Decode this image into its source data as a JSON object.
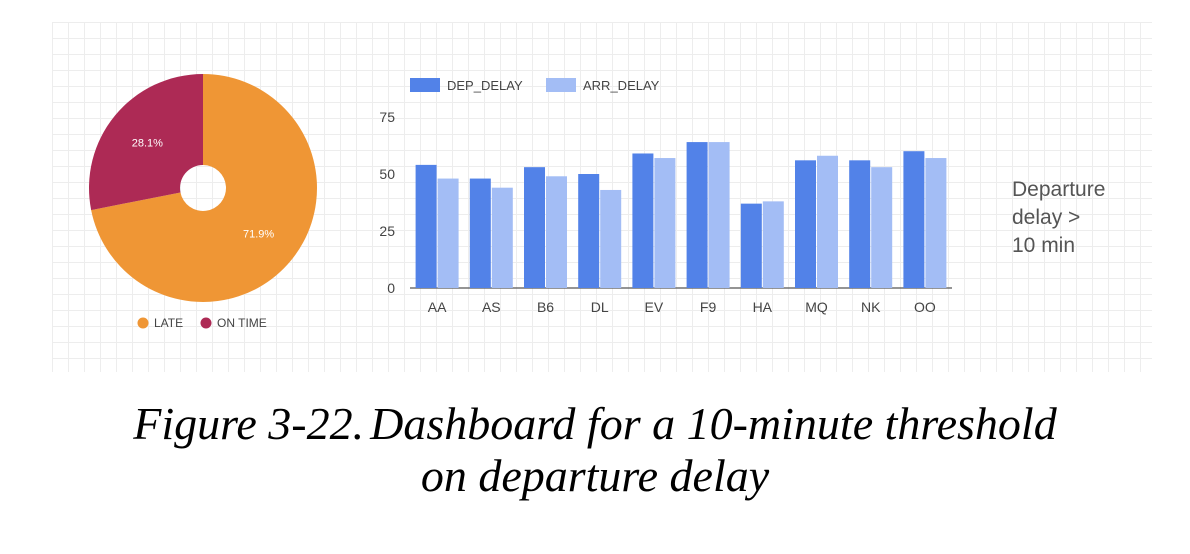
{
  "chart_data": [
    {
      "type": "pie",
      "slices": [
        {
          "name": "LATE",
          "value": 71.9,
          "label": "71.9%",
          "color": "#ef9635"
        },
        {
          "name": "ON TIME",
          "value": 28.1,
          "label": "28.1%",
          "color": "#ad2a55"
        }
      ],
      "legend": [
        "LATE",
        "ON TIME"
      ],
      "legend_position": "bottom",
      "donut": true
    },
    {
      "type": "bar",
      "categories": [
        "AA",
        "AS",
        "B6",
        "DL",
        "EV",
        "F9",
        "HA",
        "MQ",
        "NK",
        "OO"
      ],
      "series": [
        {
          "name": "DEP_DELAY",
          "color": "#5282e8",
          "values": [
            54,
            48,
            53,
            50,
            59,
            64,
            37,
            56,
            56,
            60
          ]
        },
        {
          "name": "ARR_DELAY",
          "color": "#a3bdf5",
          "values": [
            48,
            44,
            49,
            43,
            57,
            64,
            38,
            58,
            53,
            57
          ]
        }
      ],
      "yticks": [
        0,
        25,
        50,
        75
      ],
      "ylim": [
        0,
        75
      ],
      "legend_position": "top-left",
      "grid": false
    }
  ],
  "side_note": [
    "Departure",
    "delay >",
    "10 min"
  ],
  "caption": {
    "number": "Figure 3-22.",
    "line1": "Dashboard for a 10-minute threshold",
    "line2": "on departure delay"
  }
}
